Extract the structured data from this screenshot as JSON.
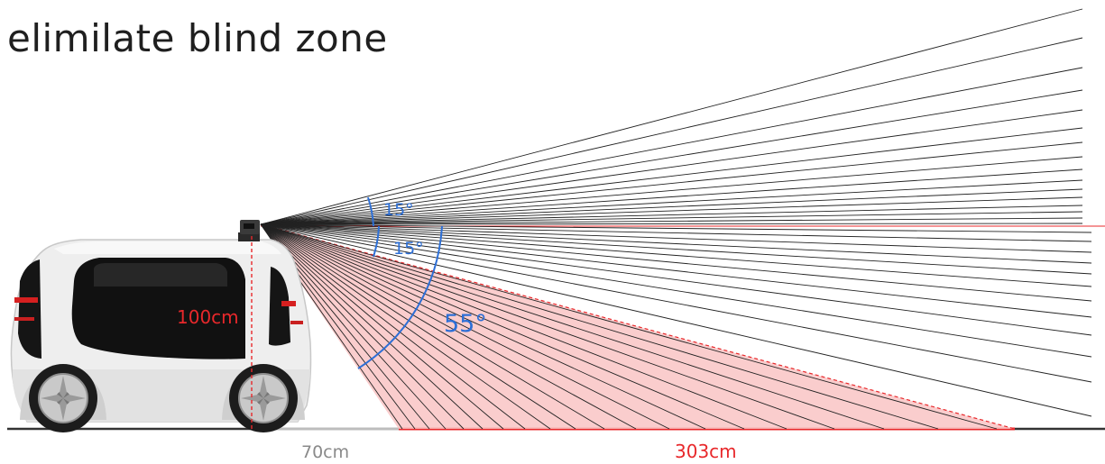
{
  "title": "elimilate blind zone",
  "labels": {
    "angle_upper": "15°",
    "angle_lower": "15°",
    "angle_total": "55°",
    "sensor_height": "100cm",
    "blind_distance": "70cm",
    "coverage_distance": "303cm"
  },
  "colors": {
    "blue": "#2d6fd6",
    "red": "#e8282b",
    "zone_fill": "#f9c4c4",
    "gray_label": "#8a8a8a",
    "beam": "#222222"
  }
}
